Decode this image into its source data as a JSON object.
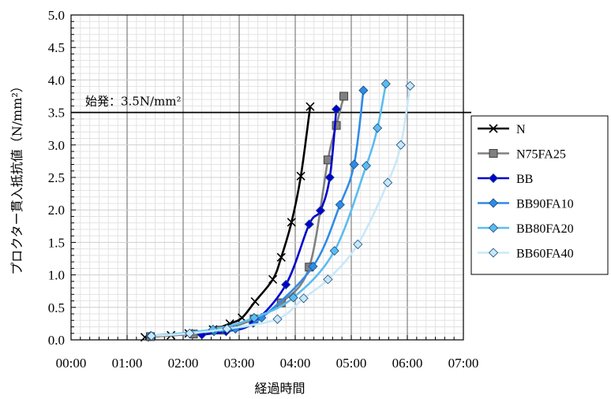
{
  "chart_data": {
    "type": "line",
    "xlabel": "経過時間",
    "ylabel": "プロクター貫入抵抗値（N/mm²）",
    "xlim": [
      0,
      420
    ],
    "ylim": [
      0,
      5
    ],
    "x_ticks": [
      "00:00",
      "01:00",
      "02:00",
      "03:00",
      "04:00",
      "05:00",
      "06:00",
      "07:00"
    ],
    "y_ticks": [
      "0.0",
      "0.5",
      "1.0",
      "1.5",
      "2.0",
      "2.5",
      "3.0",
      "3.5",
      "4.0",
      "4.5",
      "5.0"
    ],
    "grid": true,
    "legend_position": "right",
    "reference_line": {
      "y": 3.5,
      "label": "始発：3.5N/mm²"
    },
    "series": [
      {
        "name": "N",
        "marker": "x",
        "color": "#000000",
        "x": [
          79,
          107,
          126,
          152,
          170,
          183,
          197,
          216,
          225,
          236,
          246,
          256
        ],
        "y": [
          0.04,
          0.07,
          0.1,
          0.16,
          0.25,
          0.34,
          0.59,
          0.93,
          1.27,
          1.81,
          2.52,
          3.59
        ]
      },
      {
        "name": "N75FA25",
        "marker": "square",
        "color": "#808080",
        "x": [
          85,
          131,
          160,
          196,
          225,
          255,
          275,
          284,
          292
        ],
        "y": [
          0.05,
          0.09,
          0.15,
          0.32,
          0.57,
          1.12,
          2.77,
          3.3,
          3.75
        ]
      },
      {
        "name": "BB",
        "marker": "diamond",
        "color": "#0000CD",
        "x": [
          140,
          166,
          195,
          230,
          255,
          267,
          277,
          284
        ],
        "y": [
          0.08,
          0.13,
          0.26,
          0.85,
          1.78,
          1.99,
          2.5,
          3.55
        ]
      },
      {
        "name": "BB90FA10",
        "marker": "diamond",
        "color": "#2E8CE6",
        "x": [
          153,
          176,
          204,
          259,
          288,
          303,
          313
        ],
        "y": [
          0.13,
          0.17,
          0.34,
          1.13,
          2.08,
          2.7,
          3.84
        ]
      },
      {
        "name": "BB80FA20",
        "marker": "diamond",
        "color": "#5BBCF0",
        "x": [
          85,
          152,
          196,
          238,
          282,
          316,
          328,
          337
        ],
        "y": [
          0.06,
          0.16,
          0.34,
          0.65,
          1.37,
          2.68,
          3.26,
          3.94
        ]
      },
      {
        "name": "BB60FA40",
        "marker": "diamond",
        "color": "#C8E8F8",
        "x": [
          86,
          127,
          167,
          221,
          249,
          275,
          307,
          339,
          353,
          363
        ],
        "y": [
          0.06,
          0.1,
          0.17,
          0.32,
          0.64,
          0.93,
          1.47,
          2.42,
          3.0,
          3.91
        ]
      }
    ]
  }
}
